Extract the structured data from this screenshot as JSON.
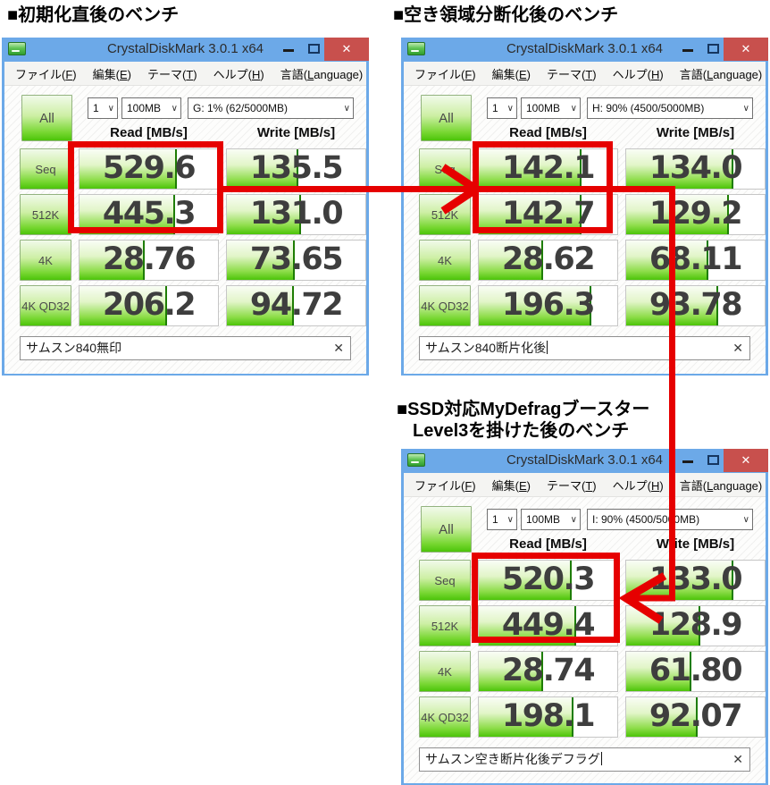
{
  "captions": {
    "initial": "■初期化直後のベンチ",
    "fragmented": "■空き領域分断化後のベンチ",
    "defrag_line1": "■SSD対応MyDefragブースター",
    "defrag_line2": "Level3を掛けた後のベンチ"
  },
  "icons": {
    "close_glyph": "✕",
    "chevron_glyph": "∨",
    "clear_glyph": "✕"
  },
  "colors": {
    "annotation_red": "#e60000",
    "bar_green": "#4cc40a",
    "titlebar_blue": "#6ca9e8",
    "close_button_red": "#c8504d"
  },
  "windows": [
    {
      "title": "CrystalDiskMark 3.0.1 x64",
      "menu": [
        "ファイル(F)",
        "編集(E)",
        "テーマ(T)",
        "ヘルプ(H)",
        "言語(Language)"
      ],
      "all_label": "All",
      "test_count": "1",
      "test_size": "100MB",
      "drive": "G: 1% (62/5000MB)",
      "read_header": "Read [MB/s]",
      "write_header": "Write [MB/s]",
      "rows": [
        {
          "label": "Seq",
          "read": "529.6",
          "write": "135.5",
          "read_fill": 69,
          "write_fill": 50
        },
        {
          "label": "512K",
          "read": "445.3",
          "write": "131.0",
          "read_fill": 68,
          "write_fill": 52
        },
        {
          "label": "4K",
          "read": "28.76",
          "write": "73.65",
          "read_fill": 46,
          "write_fill": 48
        },
        {
          "label": "4K QD32",
          "read": "206.2",
          "write": "94.72",
          "read_fill": 62,
          "write_fill": 47
        }
      ],
      "comment": "サムスン840無印"
    },
    {
      "title": "CrystalDiskMark 3.0.1 x64",
      "menu": [
        "ファイル(F)",
        "編集(E)",
        "テーマ(T)",
        "ヘルプ(H)",
        "言語(Language)"
      ],
      "all_label": "All",
      "test_count": "1",
      "test_size": "100MB",
      "drive": "H: 90% (4500/5000MB)",
      "read_header": "Read [MB/s]",
      "write_header": "Write [MB/s]",
      "rows": [
        {
          "label": "Seq",
          "read": "142.1",
          "write": "134.0",
          "read_fill": 73,
          "write_fill": 76
        },
        {
          "label": "512K",
          "read": "142.7",
          "write": "129.2",
          "read_fill": 73,
          "write_fill": 73
        },
        {
          "label": "4K",
          "read": "28.62",
          "write": "68.11",
          "read_fill": 45,
          "write_fill": 58
        },
        {
          "label": "4K QD32",
          "read": "196.3",
          "write": "93.78",
          "read_fill": 80,
          "write_fill": 65
        }
      ],
      "comment": "サムスン840断片化後"
    },
    {
      "title": "CrystalDiskMark 3.0.1 x64",
      "menu": [
        "ファイル(F)",
        "編集(E)",
        "テーマ(T)",
        "ヘルプ(H)",
        "言語(Language)"
      ],
      "all_label": "All",
      "test_count": "1",
      "test_size": "100MB",
      "drive": "I: 90% (4500/5000MB)",
      "read_header": "Read [MB/s]",
      "write_header": "Write [MB/s]",
      "rows": [
        {
          "label": "Seq",
          "read": "520.3",
          "write": "133.0",
          "read_fill": 66,
          "write_fill": 76
        },
        {
          "label": "512K",
          "read": "449.4",
          "write": "128.9",
          "read_fill": 69,
          "write_fill": 52
        },
        {
          "label": "4K",
          "read": "28.74",
          "write": "61.80",
          "read_fill": 45,
          "write_fill": 46
        },
        {
          "label": "4K QD32",
          "read": "198.1",
          "write": "92.07",
          "read_fill": 67,
          "write_fill": 50
        }
      ],
      "comment": "サムスン空き断片化後デフラグ"
    }
  ]
}
